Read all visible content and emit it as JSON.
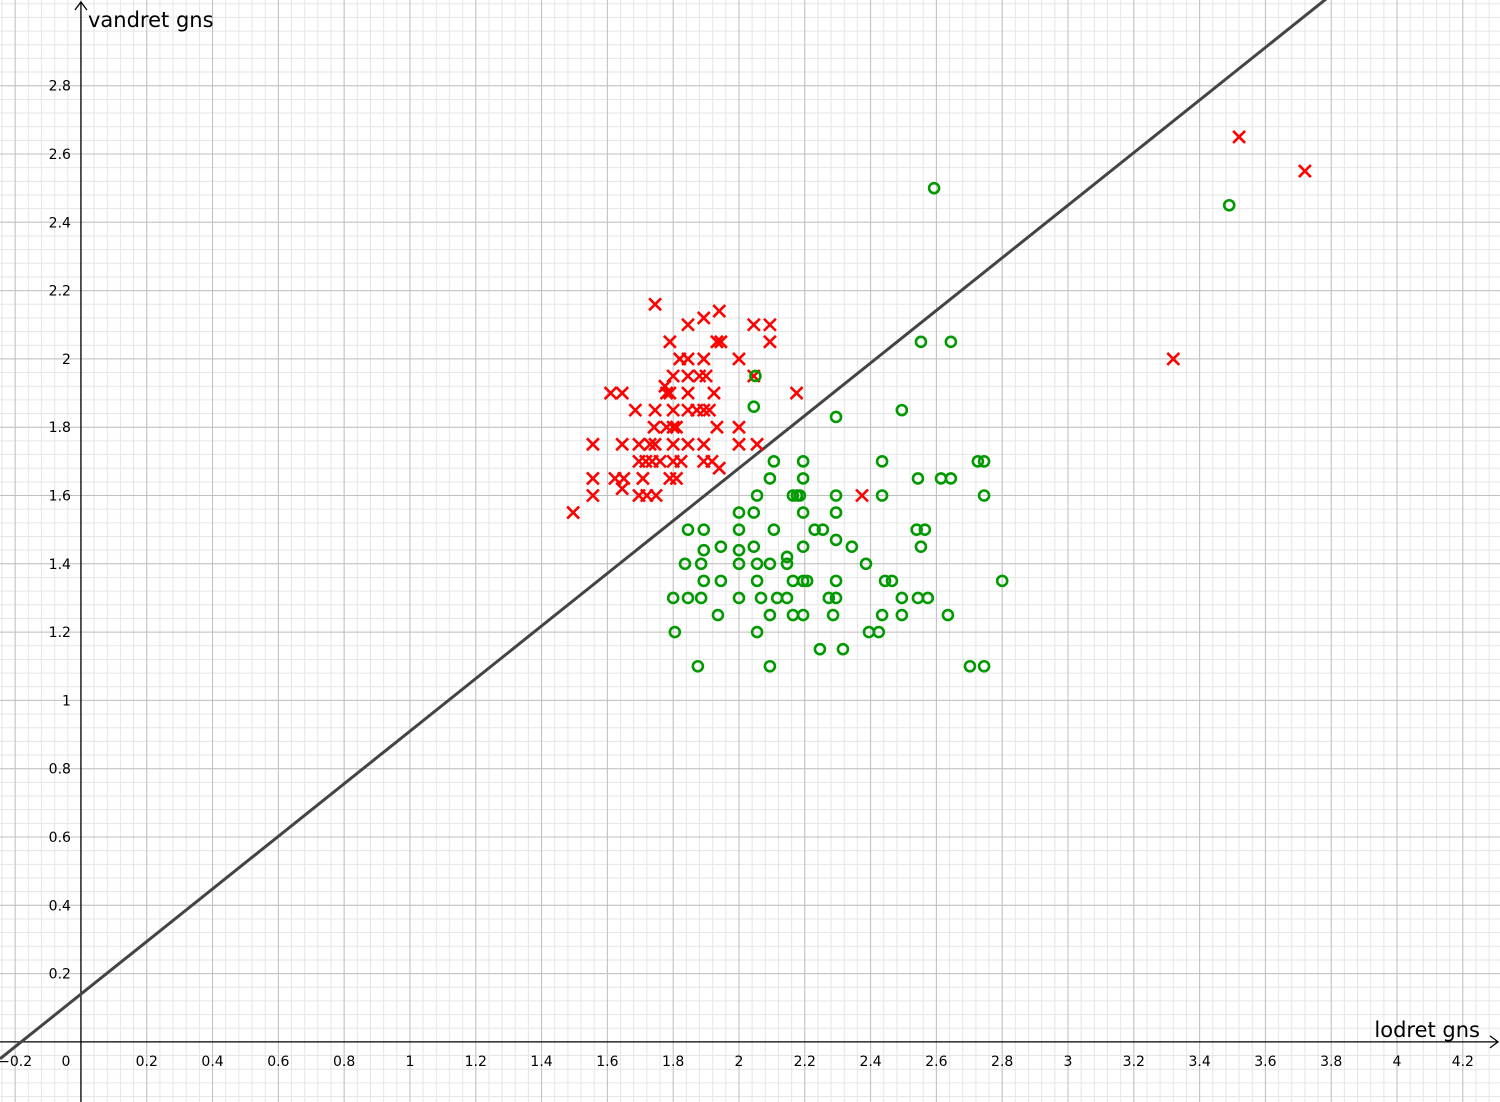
{
  "chart_data": {
    "type": "scatter",
    "x_label": "lodret gns",
    "y_label": "vandret gns",
    "xlim": [
      -0.246,
      4.313
    ],
    "ylim": [
      -0.176,
      3.051
    ],
    "xticks": [
      {
        "value": -0.2,
        "label": "−0.2"
      },
      0,
      0.2,
      0.4,
      0.6,
      0.8,
      1,
      1.2,
      1.4,
      1.6,
      1.8,
      2,
      2.2,
      2.4,
      2.6,
      2.8,
      3,
      3.2,
      3.4,
      3.6,
      3.8,
      4,
      4.2
    ],
    "yticks": [
      0.2,
      0.4,
      0.6,
      0.8,
      1,
      1.2,
      1.4,
      1.6,
      1.8,
      2,
      2.2,
      2.4,
      2.6,
      2.8
    ],
    "grid": true,
    "series": [
      {
        "color": "#ff0000",
        "marker": "x",
        "x": [
          1.745,
          1.845,
          1.893,
          1.94,
          2.045,
          2.094,
          2.094,
          1.933,
          1.945,
          1.79,
          1.82,
          1.845,
          1.893,
          2.0,
          3.32,
          3.52,
          3.72,
          1.845,
          1.8,
          1.88,
          1.9,
          2.045,
          1.775,
          1.61,
          1.645,
          1.78,
          1.79,
          1.924,
          2.175,
          1.845,
          1.685,
          1.745,
          1.845,
          1.872,
          1.893,
          1.91,
          1.8,
          1.742,
          1.78,
          1.8,
          1.81,
          2.0,
          1.933,
          1.556,
          1.645,
          1.696,
          1.73,
          1.745,
          1.8,
          1.845,
          1.893,
          2.0,
          2.055,
          1.696,
          1.717,
          1.736,
          1.76,
          1.8,
          1.824,
          1.893,
          1.918,
          1.94,
          1.556,
          1.623,
          1.65,
          1.708,
          1.79,
          1.81,
          1.645,
          1.556,
          1.696,
          1.72,
          1.748,
          1.496,
          2.374
        ],
        "y": [
          2.16,
          2.1,
          2.12,
          2.14,
          2.1,
          2.1,
          2.05,
          2.05,
          2.05,
          2.05,
          2.0,
          2.0,
          2.0,
          2.0,
          2.0,
          2.65,
          2.55,
          1.95,
          1.95,
          1.95,
          1.95,
          1.95,
          1.92,
          1.9,
          1.9,
          1.9,
          1.9,
          1.9,
          1.9,
          1.9,
          1.85,
          1.85,
          1.85,
          1.85,
          1.85,
          1.85,
          1.85,
          1.8,
          1.8,
          1.8,
          1.8,
          1.8,
          1.8,
          1.75,
          1.75,
          1.75,
          1.75,
          1.75,
          1.75,
          1.75,
          1.75,
          1.75,
          1.75,
          1.7,
          1.7,
          1.7,
          1.7,
          1.7,
          1.7,
          1.7,
          1.7,
          1.68,
          1.65,
          1.65,
          1.65,
          1.65,
          1.65,
          1.65,
          1.62,
          1.6,
          1.6,
          1.6,
          1.6,
          1.55,
          1.6
        ]
      },
      {
        "color": "#009900",
        "marker": "o",
        "x": [
          2.593,
          3.49,
          2.553,
          2.644,
          2.05,
          2.045,
          2.295,
          2.495,
          2.106,
          2.195,
          2.435,
          2.726,
          2.745,
          2.094,
          2.195,
          2.544,
          2.614,
          2.644,
          2.055,
          2.164,
          2.176,
          2.185,
          2.295,
          2.435,
          2.745,
          2.0,
          2.045,
          2.195,
          2.295,
          1.845,
          1.893,
          2.0,
          2.106,
          2.23,
          2.255,
          2.54,
          2.565,
          2.295,
          1.893,
          1.945,
          2.0,
          2.045,
          2.195,
          2.343,
          2.553,
          2.146,
          1.836,
          1.885,
          2.0,
          2.055,
          2.094,
          2.146,
          2.386,
          1.893,
          1.945,
          2.055,
          2.164,
          2.195,
          2.207,
          2.295,
          2.444,
          2.465,
          2.8,
          1.8,
          1.845,
          1.885,
          2.0,
          2.067,
          2.116,
          2.146,
          2.273,
          2.295,
          2.495,
          2.544,
          2.574,
          1.936,
          2.094,
          2.164,
          2.195,
          2.286,
          2.435,
          2.495,
          2.635,
          1.805,
          2.055,
          2.395,
          2.425,
          2.246,
          2.316,
          1.875,
          2.094,
          2.702,
          2.745
        ],
        "y": [
          2.5,
          2.45,
          2.05,
          2.05,
          1.95,
          1.86,
          1.83,
          1.85,
          1.7,
          1.7,
          1.7,
          1.7,
          1.7,
          1.65,
          1.65,
          1.65,
          1.65,
          1.65,
          1.6,
          1.6,
          1.6,
          1.6,
          1.6,
          1.6,
          1.6,
          1.55,
          1.55,
          1.55,
          1.55,
          1.5,
          1.5,
          1.5,
          1.5,
          1.5,
          1.5,
          1.5,
          1.5,
          1.47,
          1.44,
          1.45,
          1.44,
          1.45,
          1.45,
          1.45,
          1.45,
          1.42,
          1.4,
          1.4,
          1.4,
          1.4,
          1.4,
          1.4,
          1.4,
          1.35,
          1.35,
          1.35,
          1.35,
          1.35,
          1.35,
          1.35,
          1.35,
          1.35,
          1.35,
          1.3,
          1.3,
          1.3,
          1.3,
          1.3,
          1.3,
          1.3,
          1.3,
          1.3,
          1.3,
          1.3,
          1.3,
          1.25,
          1.25,
          1.25,
          1.25,
          1.25,
          1.25,
          1.25,
          1.25,
          1.2,
          1.2,
          1.2,
          1.2,
          1.15,
          1.15,
          1.1,
          1.1,
          1.1,
          1.1
        ]
      }
    ],
    "lines": [
      {
        "slope": 0.77,
        "intercept": 0.14,
        "color": "#444444"
      }
    ]
  }
}
